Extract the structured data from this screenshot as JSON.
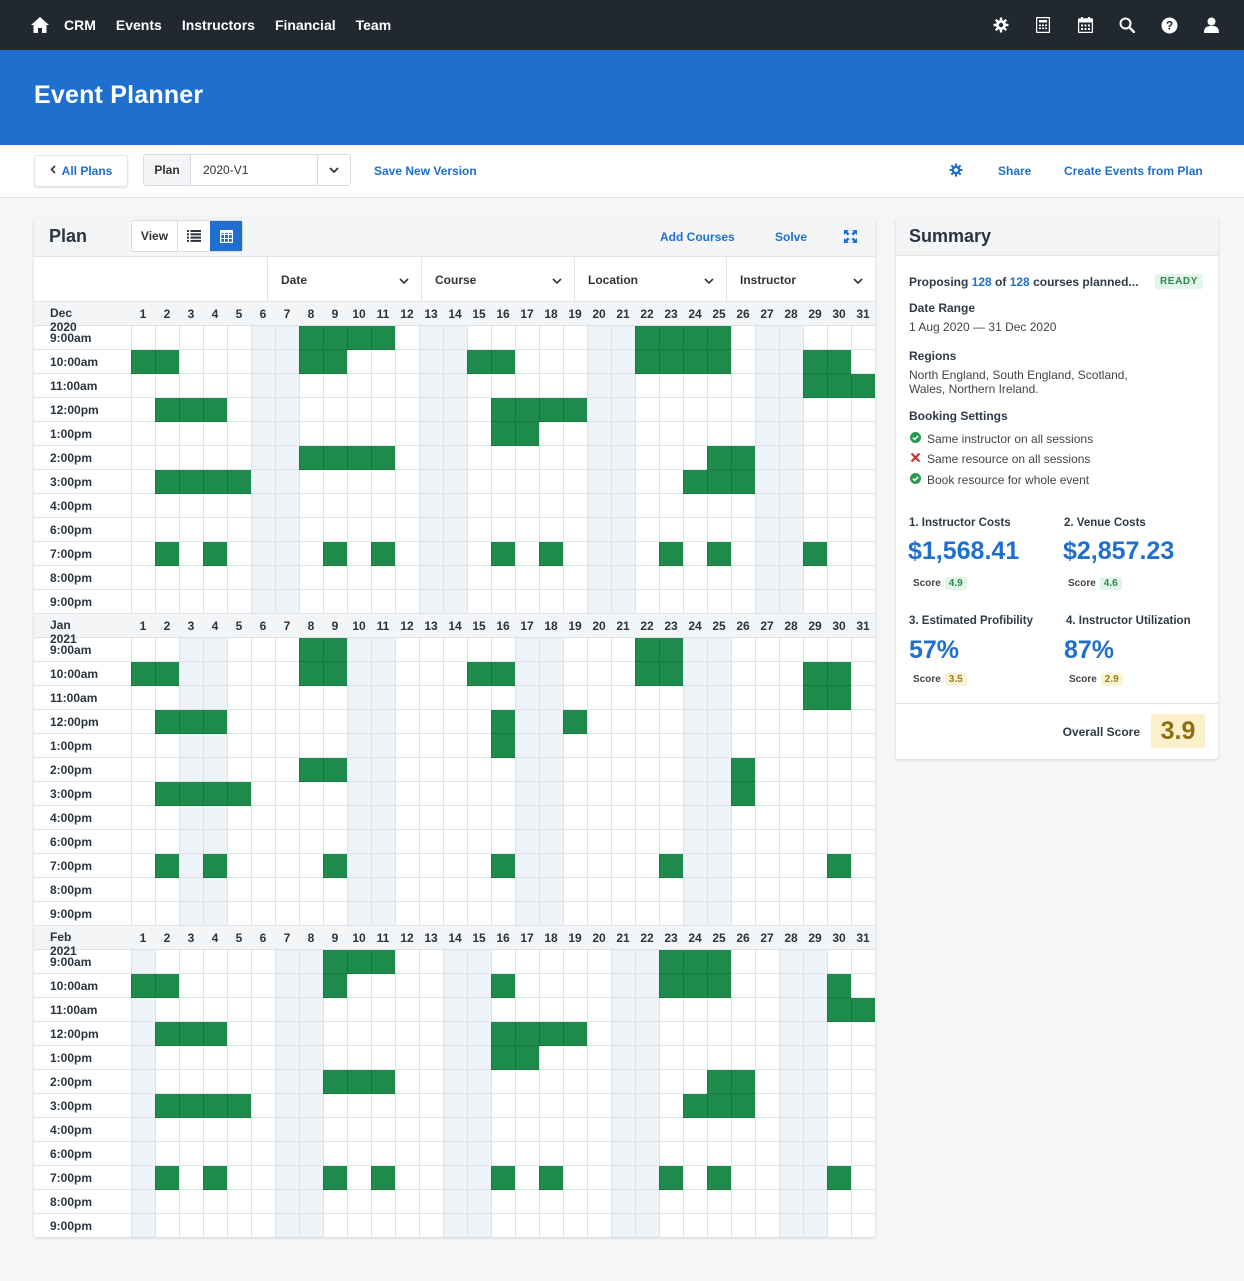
{
  "nav": {
    "links": [
      "CRM",
      "Events",
      "Instructors",
      "Financial",
      "Team"
    ],
    "icons": [
      "home-icon",
      "gear-icon",
      "calculator-icon",
      "calendar-icon",
      "search-icon",
      "help-icon",
      "user-icon"
    ]
  },
  "header": {
    "title": "Event Planner"
  },
  "toolbar": {
    "all_plans": "All Plans",
    "plan_label": "Plan",
    "plan_value": "2020-V1",
    "save_version": "Save New Version",
    "share": "Share",
    "create_events": "Create Events from Plan"
  },
  "plan": {
    "title": "Plan",
    "view_label": "View",
    "add_courses": "Add Courses",
    "solve": "Solve",
    "filters": [
      "Date",
      "Course",
      "Location",
      "Instructor"
    ]
  },
  "calendar": {
    "times": [
      "9:00am",
      "10:00am",
      "11:00am",
      "12:00pm",
      "1:00pm",
      "2:00pm",
      "3:00pm",
      "4:00pm",
      "6:00pm",
      "7:00pm",
      "8:00pm",
      "9:00pm"
    ],
    "months": [
      {
        "name": "Dec 2020",
        "days": 31,
        "shaded_days": [
          6,
          7,
          13,
          14,
          20,
          21,
          27,
          28
        ],
        "booked": {
          "9:00am": [
            8,
            9,
            10,
            11,
            22,
            23,
            24,
            25
          ],
          "10:00am": [
            1,
            2,
            8,
            9,
            15,
            16,
            22,
            23,
            24,
            25,
            29,
            30
          ],
          "11:00am": [
            29,
            30,
            31
          ],
          "12:00pm": [
            2,
            3,
            4,
            16,
            17,
            18,
            19
          ],
          "1:00pm": [
            16,
            17
          ],
          "2:00pm": [
            8,
            9,
            10,
            11,
            25,
            26
          ],
          "3:00pm": [
            2,
            3,
            4,
            5,
            24,
            25,
            26
          ],
          "7:00pm": [
            2,
            4,
            9,
            11,
            16,
            18,
            23,
            25,
            29
          ]
        }
      },
      {
        "name": "Jan 2021",
        "days": 31,
        "shaded_days": [
          3,
          4,
          10,
          11,
          17,
          18,
          24,
          25
        ],
        "booked": {
          "9:00am": [
            8,
            9,
            22,
            23
          ],
          "10:00am": [
            1,
            2,
            8,
            9,
            15,
            16,
            22,
            23,
            29,
            30
          ],
          "11:00am": [
            29,
            30
          ],
          "12:00pm": [
            2,
            3,
            4,
            16,
            19
          ],
          "1:00pm": [
            16
          ],
          "2:00pm": [
            8,
            9,
            26
          ],
          "3:00pm": [
            2,
            3,
            4,
            5,
            26
          ],
          "7:00pm": [
            2,
            4,
            9,
            16,
            23,
            30
          ]
        }
      },
      {
        "name": "Feb 2021",
        "days": 31,
        "shaded_days": [
          1,
          7,
          8,
          14,
          15,
          21,
          22,
          28,
          29
        ],
        "booked": {
          "9:00am": [
            9,
            10,
            11,
            23,
            24,
            25
          ],
          "10:00am": [
            1,
            2,
            9,
            16,
            23,
            24,
            25,
            30
          ],
          "11:00am": [
            30,
            31
          ],
          "12:00pm": [
            2,
            3,
            4,
            16,
            17,
            18,
            19
          ],
          "1:00pm": [
            16,
            17
          ],
          "2:00pm": [
            9,
            10,
            11,
            25,
            26
          ],
          "3:00pm": [
            2,
            3,
            4,
            5,
            24,
            25,
            26
          ],
          "7:00pm": [
            2,
            4,
            9,
            11,
            16,
            18,
            23,
            25,
            30
          ]
        }
      }
    ]
  },
  "summary": {
    "title": "Summary",
    "proposing_prefix": "Proposing ",
    "planned": "128",
    "of_text": " of ",
    "total": "128",
    "proposing_suffix": " courses planned...",
    "status": "READY",
    "date_range_label": "Date Range",
    "date_range": "1 Aug 2020 — 31 Dec 2020",
    "regions_label": "Regions",
    "regions_line1": "North England, South England, Scotland,",
    "regions_line2": "Wales, Northern Ireland.",
    "booking_label": "Booking Settings",
    "booking": [
      {
        "text": "Same instructor on all sessions",
        "enabled": true
      },
      {
        "text": "Same resource on all sessions",
        "enabled": false
      },
      {
        "text": "Book resource for whole event",
        "enabled": true
      }
    ],
    "metrics": [
      {
        "label": "1. Instructor Costs",
        "value": "$1,568.41",
        "score_label": "Score",
        "score": "4.9",
        "tone": "green"
      },
      {
        "label": "2. Venue Costs",
        "value": "$2,857.23",
        "score_label": "Score",
        "score": "4.6",
        "tone": "green"
      },
      {
        "label": "3. Estimated Profibility",
        "value": "57%",
        "score_label": "Score",
        "score": "3.5",
        "tone": "yellow"
      },
      {
        "label": "4. Instructor Utilization",
        "value": "87%",
        "score_label": "Score",
        "score": "2.9",
        "tone": "yellow"
      }
    ],
    "overall_label": "Overall Score",
    "overall": "3.9"
  },
  "colors": {
    "nav": "#212830",
    "brand": "#1f6fce",
    "booked": "#1e8a4c",
    "weekend": "#eef3f8",
    "grid_line": "#dde3ea"
  }
}
